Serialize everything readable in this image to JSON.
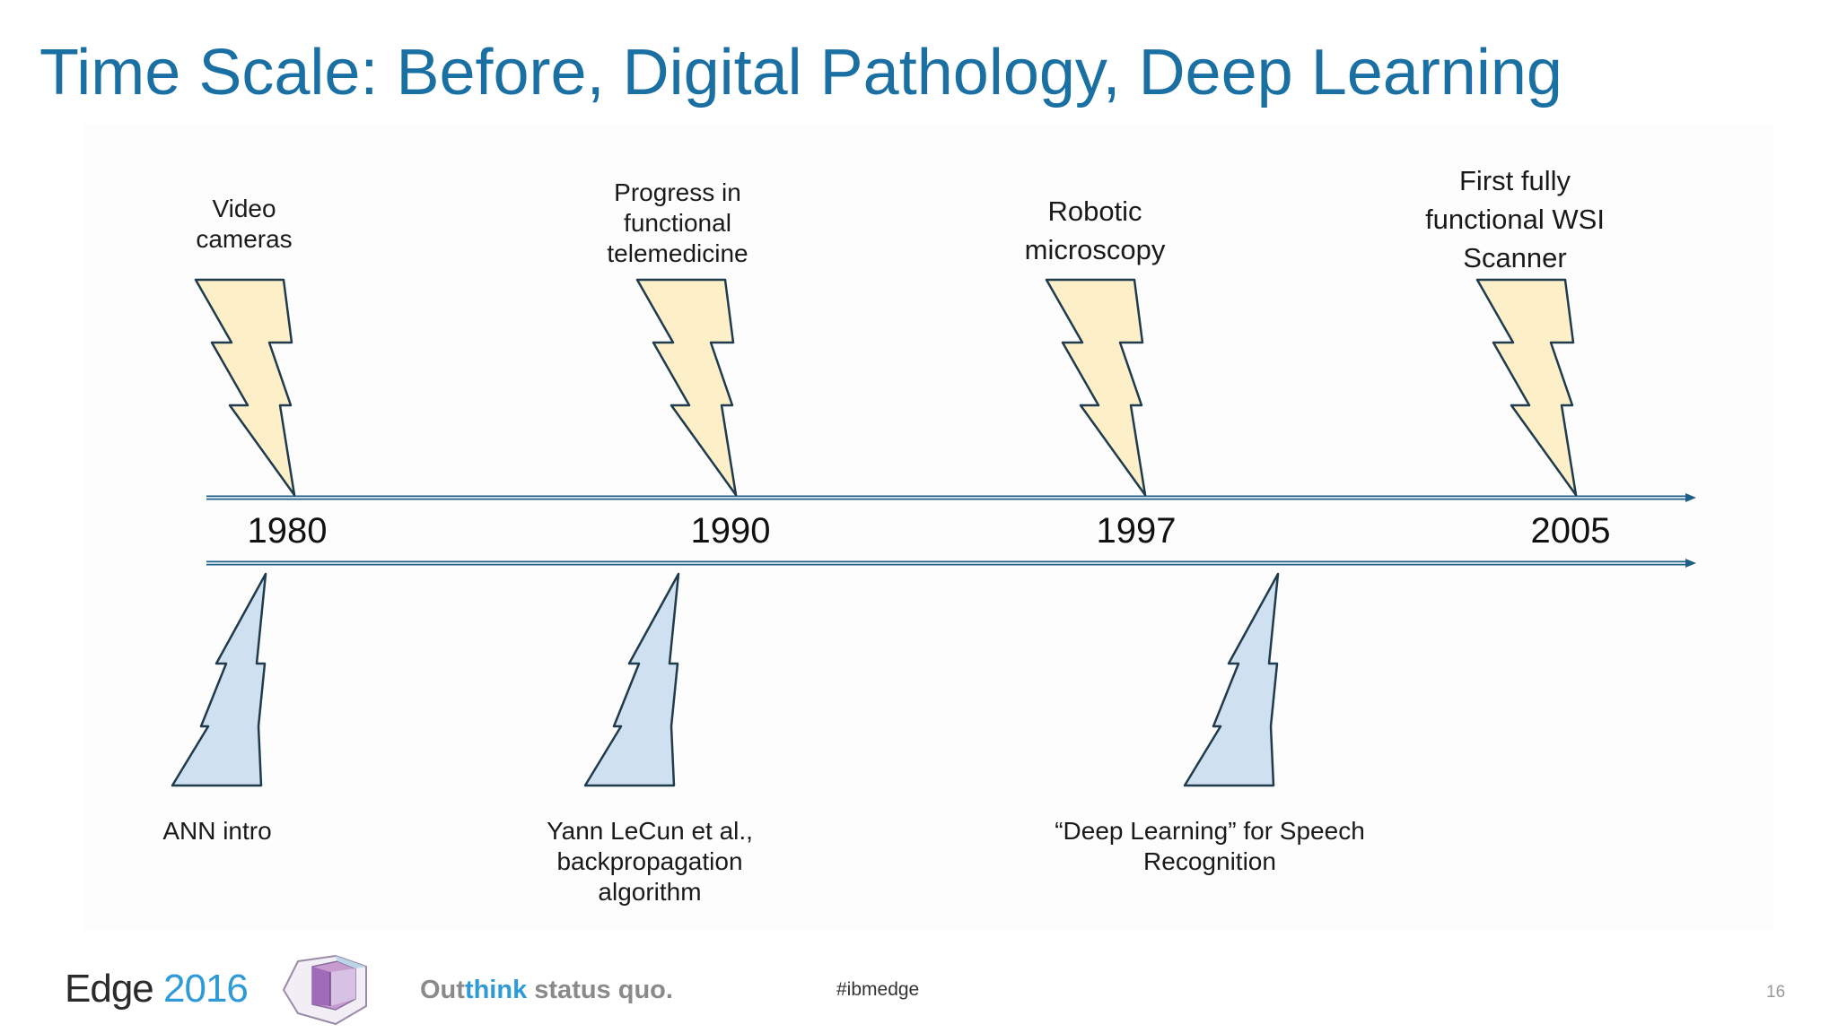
{
  "slide": {
    "title": "Time Scale: Before, Digital Pathology, Deep Learning",
    "colors": {
      "title": "#1a6fa3",
      "top_bolt_fill": "#fdf0c9",
      "bottom_bolt_fill": "#cfe0f1",
      "bolt_stroke": "#1f3b4d",
      "timeline": "#1d5f86"
    },
    "years": [
      "1980",
      "1990",
      "1997",
      "2005"
    ],
    "top_events": [
      {
        "label": "Video\ncameras"
      },
      {
        "label": "Progress in\nfunctional\ntelemedicine"
      },
      {
        "label": "Robotic\nmicroscopy"
      },
      {
        "label": "First fully\nfunctional WSI\nScanner"
      }
    ],
    "bottom_events": [
      {
        "label": "ANN intro"
      },
      {
        "label": "Yann LeCun et al.,\nbackpropagation\nalgorithm"
      },
      {
        "label": "“Deep Learning” for Speech\nRecognition"
      }
    ]
  },
  "footer": {
    "edge_word": "Edge",
    "edge_year": "2016",
    "tagline_a": "Out",
    "tagline_b": "think",
    "tagline_c": " status quo.",
    "hashtag": "#ibmedge",
    "page_number": "16"
  }
}
